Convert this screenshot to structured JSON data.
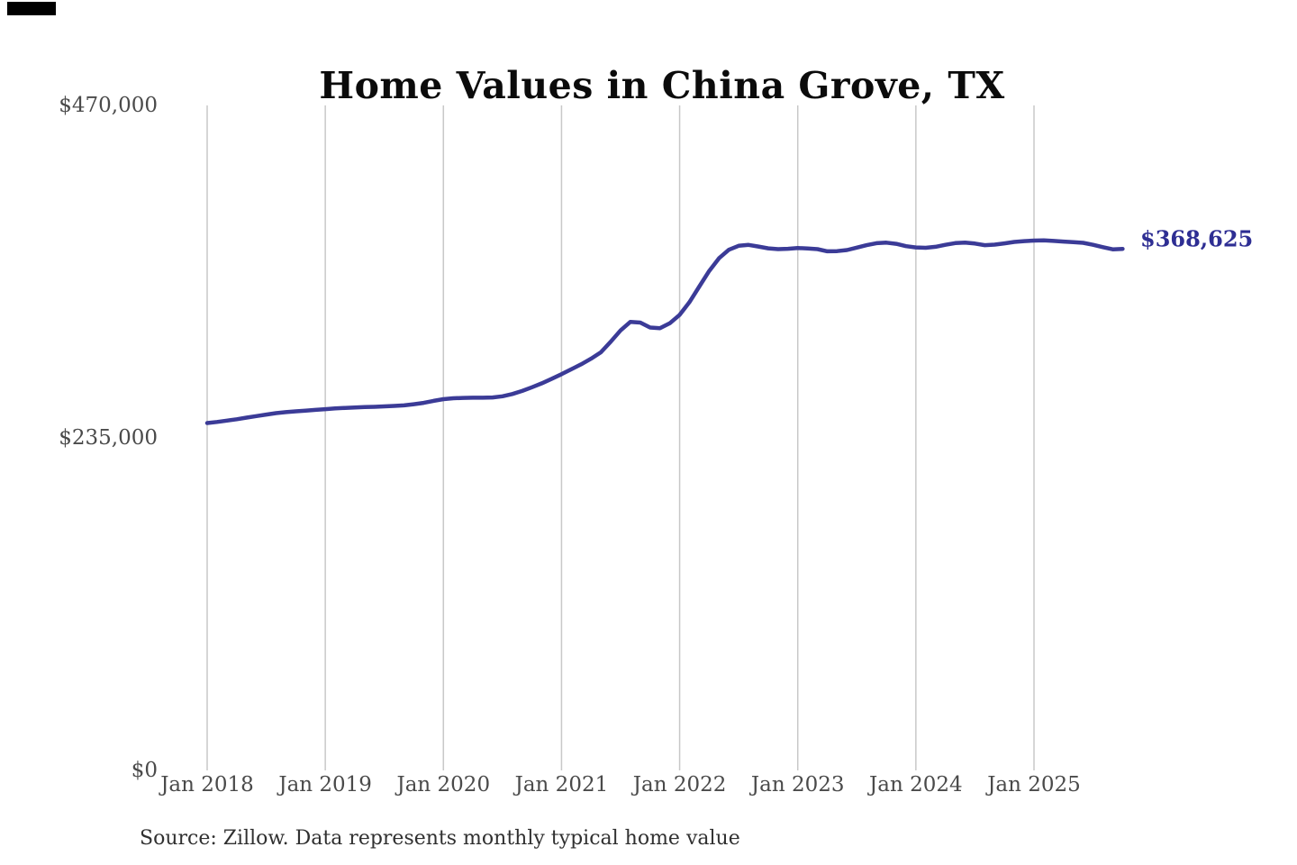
{
  "title": "Home Values in China Grove, TX",
  "source_note": "Source: Zillow. Data represents monthly typical home value",
  "colors": {
    "background": "#ffffff",
    "title": "#0b0b0b",
    "axis_labels": "#4a4a4a",
    "gridline": "#c8c8c8",
    "line": "#3b3b97",
    "end_label": "#2e2e93",
    "source": "#303030",
    "corner_mark": "#000000"
  },
  "chart_data": {
    "type": "line",
    "title": "Home Values in China Grove, TX",
    "series_name": "Monthly typical home value",
    "unit": "USD",
    "x_start": "2018-01",
    "x_end": "2025-10",
    "points_per_year": 12,
    "grid": "vertical-only",
    "legend": "none",
    "ylim": [
      0,
      470000
    ],
    "y_ticks": [
      {
        "value": 470000,
        "label": "$470,000"
      },
      {
        "value": 235000,
        "label": "$235,000"
      },
      {
        "value": 0,
        "label": "$0"
      }
    ],
    "x_tick_labels": [
      "Jan 2018",
      "Jan 2019",
      "Jan 2020",
      "Jan 2021",
      "Jan 2022",
      "Jan 2023",
      "Jan 2024",
      "Jan 2025"
    ],
    "end_label": "$368,625",
    "end_value": 368625,
    "values": [
      245500,
      246300,
      247200,
      248200,
      249300,
      250400,
      251500,
      252500,
      253200,
      253800,
      254300,
      254800,
      255300,
      255800,
      256200,
      256500,
      256800,
      257000,
      257300,
      257600,
      258000,
      258800,
      259800,
      261200,
      262400,
      263000,
      263300,
      263400,
      263400,
      263600,
      264400,
      266000,
      268200,
      270800,
      273600,
      276800,
      280000,
      283500,
      287000,
      291000,
      295500,
      303000,
      311000,
      317000,
      316500,
      313000,
      312500,
      316000,
      322000,
      331000,
      342000,
      353000,
      362000,
      368000,
      370800,
      371400,
      370300,
      369000,
      368400,
      368700,
      369200,
      368900,
      368400,
      366900,
      367000,
      367800,
      369500,
      371200,
      372600,
      373000,
      372200,
      370500,
      369600,
      369400,
      370100,
      371500,
      372700,
      373100,
      372400,
      371200,
      371600,
      372500,
      373500,
      374100,
      374500,
      374600,
      374200,
      373800,
      373400,
      372900,
      371500,
      369800,
      368300,
      368625
    ]
  }
}
